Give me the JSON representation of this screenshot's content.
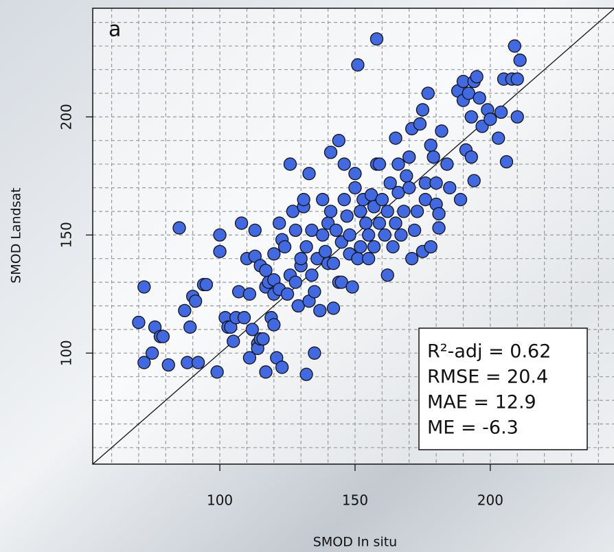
{
  "chart_data": {
    "type": "scatter",
    "panel_label": "a",
    "xlabel": "SMOD In situ",
    "ylabel": "SMOD Landsat",
    "annotations": [
      "R²-adj = 0.62",
      "RMSE = 20.4",
      "MAE = 12.9",
      "ME = -6.3"
    ],
    "color": "#4169e1",
    "xlim": [
      53,
      246
    ],
    "ylim": [
      53,
      246
    ],
    "xticks": [
      100,
      150,
      200
    ],
    "yticks": [
      100,
      150,
      200
    ],
    "xgrid": [
      60,
      70,
      80,
      90,
      100,
      110,
      120,
      130,
      140,
      150,
      160,
      170,
      180,
      190,
      200,
      210,
      220,
      230,
      240
    ],
    "ygrid": [
      60,
      70,
      80,
      90,
      100,
      110,
      120,
      130,
      140,
      150,
      160,
      170,
      180,
      190,
      200,
      210,
      220,
      230,
      240
    ],
    "grid": true,
    "identity_line": true,
    "x": [
      70,
      72,
      72,
      75,
      76,
      78,
      79,
      81,
      85,
      87,
      88,
      89,
      90,
      91,
      92,
      94,
      95,
      99,
      100,
      100,
      102,
      103,
      104,
      105,
      106,
      107,
      108,
      109,
      110,
      111,
      111,
      112,
      113,
      113,
      114,
      114,
      115,
      116,
      115,
      117,
      117,
      117,
      118,
      119,
      120,
      120,
      120,
      120,
      121,
      122,
      122,
      123,
      123,
      124,
      125,
      126,
      126,
      127,
      128,
      128,
      129,
      130,
      130,
      131,
      131,
      132,
      132,
      133,
      133,
      134,
      134,
      135,
      135,
      136,
      137,
      138,
      138,
      139,
      140,
      140,
      141,
      141,
      142,
      142,
      143,
      144,
      144,
      145,
      145,
      146,
      146,
      147,
      148,
      148,
      149,
      150,
      150,
      151,
      151,
      152,
      152,
      153,
      154,
      155,
      155,
      156,
      157,
      157,
      158,
      158,
      159,
      159,
      160,
      161,
      162,
      162,
      163,
      164,
      165,
      165,
      166,
      166,
      167,
      168,
      169,
      170,
      170,
      171,
      171,
      172,
      173,
      174,
      175,
      175,
      176,
      176,
      177,
      178,
      178,
      179,
      180,
      180,
      181,
      181,
      182,
      184,
      185,
      188,
      189,
      190,
      190,
      191,
      192,
      193,
      193,
      194,
      194,
      195,
      196,
      197,
      199,
      200,
      203,
      204,
      205,
      206,
      208,
      209,
      210,
      210,
      211
    ],
    "values": [
      113,
      128,
      96,
      100,
      111,
      107,
      107,
      95,
      153,
      118,
      96,
      111,
      124,
      122,
      96,
      129,
      129,
      92,
      150,
      143,
      115,
      111,
      111,
      105,
      115,
      126,
      155,
      115,
      140,
      98,
      125,
      110,
      141,
      152,
      104,
      102,
      106,
      106,
      137,
      135,
      128,
      92,
      130,
      115,
      112,
      125,
      131,
      142,
      98,
      127,
      155,
      94,
      148,
      145,
      125,
      133,
      180,
      160,
      152,
      130,
      120,
      137,
      140,
      162,
      165,
      145,
      91,
      176,
      122,
      152,
      133,
      126,
      100,
      140,
      118,
      150,
      165,
      143,
      138,
      155,
      160,
      185,
      138,
      119,
      152,
      130,
      190,
      147,
      130,
      180,
      165,
      158,
      142,
      150,
      128,
      176,
      170,
      140,
      222,
      160,
      145,
      165,
      155,
      150,
      140,
      167,
      162,
      145,
      233,
      180,
      180,
      155,
      165,
      150,
      160,
      133,
      172,
      145,
      155,
      191,
      180,
      168,
      150,
      160,
      175,
      183,
      170,
      140,
      195,
      152,
      160,
      197,
      203,
      143,
      165,
      172,
      210,
      188,
      145,
      183,
      172,
      163,
      159,
      153,
      194,
      180,
      170,
      211,
      165,
      215,
      207,
      186,
      210,
      183,
      200,
      173,
      215,
      217,
      208,
      196,
      203,
      199,
      191,
      202,
      216,
      181,
      216,
      230,
      200,
      216,
      224
    ]
  }
}
